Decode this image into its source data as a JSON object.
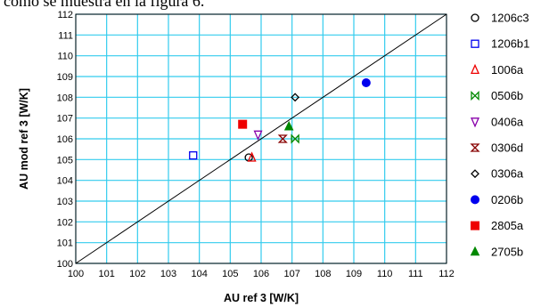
{
  "page_text": {
    "caption": "como se muestra en la figura 6."
  },
  "chart_data": {
    "type": "scatter",
    "xlabel": "AU ref 3  [W/K]",
    "ylabel": "AU mod ref 3 [W/K]",
    "xlim": [
      100,
      112
    ],
    "ylim": [
      100,
      112
    ],
    "xticks": [
      "100",
      "101",
      "102",
      "103",
      "104",
      "105",
      "106",
      "107",
      "108",
      "109",
      "110",
      "111",
      "112"
    ],
    "yticks": [
      "100",
      "101",
      "102",
      "103",
      "104",
      "105",
      "106",
      "107",
      "108",
      "109",
      "110",
      "111",
      "112"
    ],
    "grid": true,
    "grid_color": "#33ccee",
    "reference_line": {
      "from": [
        100,
        100
      ],
      "to": [
        112,
        112
      ],
      "color": "#000000"
    },
    "legend_position": "right",
    "series": [
      {
        "name": "1206c3",
        "marker": "circle-open",
        "color": "#000000",
        "x": 105.6,
        "y": 105.1
      },
      {
        "name": "1206b1",
        "marker": "square-open",
        "color": "#0000ee",
        "x": 103.8,
        "y": 105.2
      },
      {
        "name": "1006a",
        "marker": "triangle-up-open",
        "color": "#ee0000",
        "x": 105.7,
        "y": 105.1
      },
      {
        "name": "0506b",
        "marker": "bowtie-h-open",
        "color": "#008800",
        "x": 107.1,
        "y": 106.0
      },
      {
        "name": "0406a",
        "marker": "triangle-down-open",
        "color": "#8800aa",
        "x": 105.9,
        "y": 106.2
      },
      {
        "name": "0306d",
        "marker": "hourglass-open",
        "color": "#880000",
        "x": 106.7,
        "y": 106.0
      },
      {
        "name": "0306a",
        "marker": "diamond-open",
        "color": "#000000",
        "x": 107.1,
        "y": 108.0
      },
      {
        "name": "0206b",
        "marker": "circle-filled",
        "color": "#0000ee",
        "x": 109.4,
        "y": 108.7
      },
      {
        "name": "2805a",
        "marker": "square-filled",
        "color": "#ee0000",
        "x": 105.4,
        "y": 106.7
      },
      {
        "name": "2705b",
        "marker": "triangle-up-filled",
        "color": "#008800",
        "x": 106.9,
        "y": 106.6
      }
    ]
  }
}
